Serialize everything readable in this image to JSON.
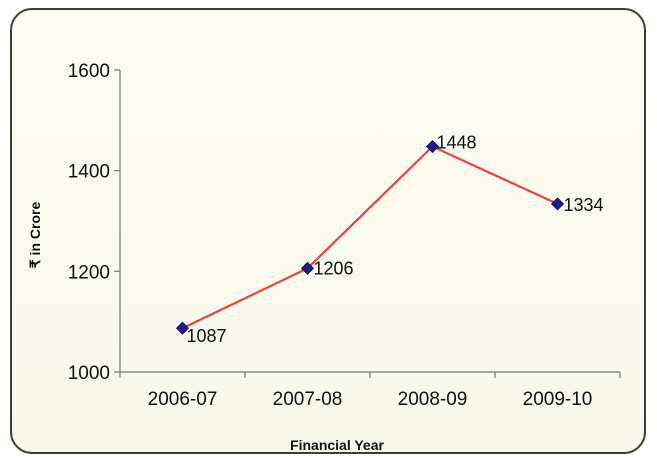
{
  "chart_data": {
    "type": "line",
    "categories": [
      "2006-07",
      "2007-08",
      "2008-09",
      "2009-10"
    ],
    "values": [
      1087,
      1206,
      1448,
      1334
    ],
    "data_labels": [
      "1087",
      "1206",
      "1448",
      "1334"
    ],
    "xlabel": "Financial Year",
    "ylabel": "₹ in Crore",
    "ylim": [
      1000,
      1600
    ],
    "yticks": [
      "1000",
      "1200",
      "1400",
      "1600"
    ],
    "grid": false,
    "legend": "none",
    "line_color": "#e8453c",
    "marker_color": "#1c1c8c",
    "marker": "diamond"
  }
}
